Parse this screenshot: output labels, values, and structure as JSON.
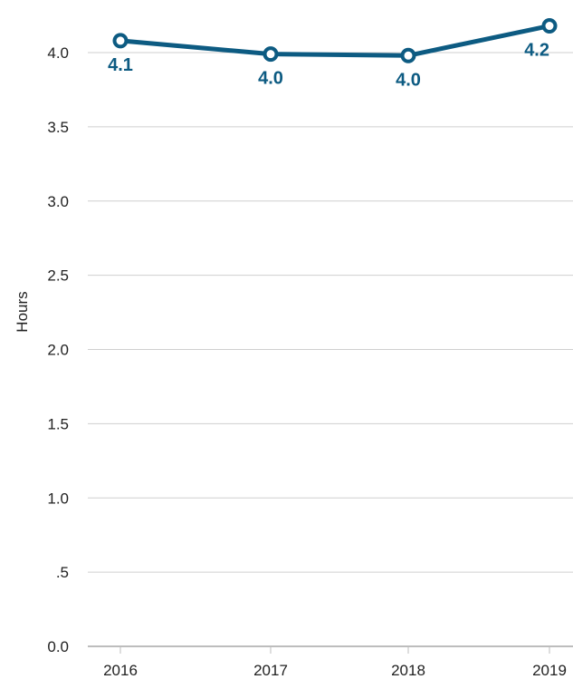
{
  "chart_data": {
    "type": "line",
    "title": "",
    "xlabel": "",
    "ylabel": "Hours",
    "categories": [
      "2016",
      "2017",
      "2018",
      "2019"
    ],
    "series": [
      {
        "values": [
          4.08,
          3.99,
          3.98,
          4.18
        ],
        "labels": [
          "4.1",
          "4.0",
          "4.0",
          "4.2"
        ]
      }
    ],
    "ylim": [
      0,
      4.2
    ],
    "yticks": [
      0,
      0.5,
      1.0,
      1.5,
      2.0,
      2.5,
      3.0,
      3.5,
      4.0
    ],
    "ytick_labels": [
      "0.0",
      ".5",
      "1.0",
      "1.5",
      "2.0",
      "2.5",
      "3.0",
      "3.5",
      "4.0"
    ],
    "grid": true,
    "legend": "none",
    "colors": {
      "line": "#0d5b82",
      "marker_fill": "#ffffff",
      "grid": "#cfcfcf",
      "axis": "#bdbdbd",
      "text": "#222222"
    }
  }
}
